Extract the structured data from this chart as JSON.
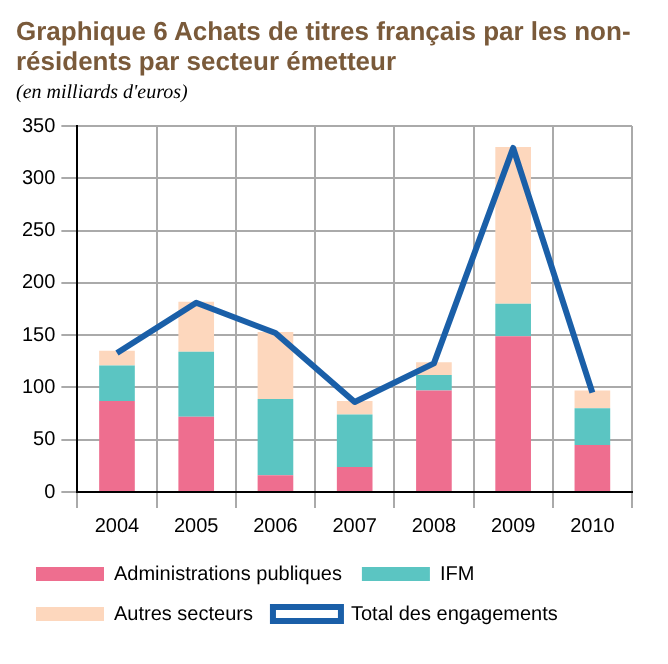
{
  "chart_data": {
    "type": "bar",
    "title": "Graphique 6   Achats de titres français par les non-résidents par secteur émetteur",
    "subtitle": "(en milliards d'euros)",
    "categories": [
      "2004",
      "2005",
      "2006",
      "2007",
      "2008",
      "2009",
      "2010"
    ],
    "series": [
      {
        "name": "Administrations publiques",
        "color": "#ee6e8f",
        "values": [
          87,
          72,
          16,
          24,
          97,
          149,
          45
        ]
      },
      {
        "name": "IFM",
        "color": "#5bc5c2",
        "values": [
          34,
          62,
          73,
          50,
          15,
          31,
          35
        ]
      },
      {
        "name": "Autres secteurs",
        "color": "#fdd7bd",
        "values": [
          14,
          48,
          64,
          13,
          12,
          150,
          17
        ]
      },
      {
        "name": "Total des engagements",
        "type": "line",
        "color": "#1a5fa8",
        "values": [
          133,
          181,
          152,
          86,
          123,
          329,
          95
        ]
      }
    ],
    "stacked": true,
    "ylim": [
      0,
      350
    ],
    "yticks": [
      0,
      50,
      100,
      150,
      200,
      250,
      300,
      350
    ],
    "grid": true,
    "legend": "bottom",
    "marker": "none",
    "line_style": "solid"
  }
}
